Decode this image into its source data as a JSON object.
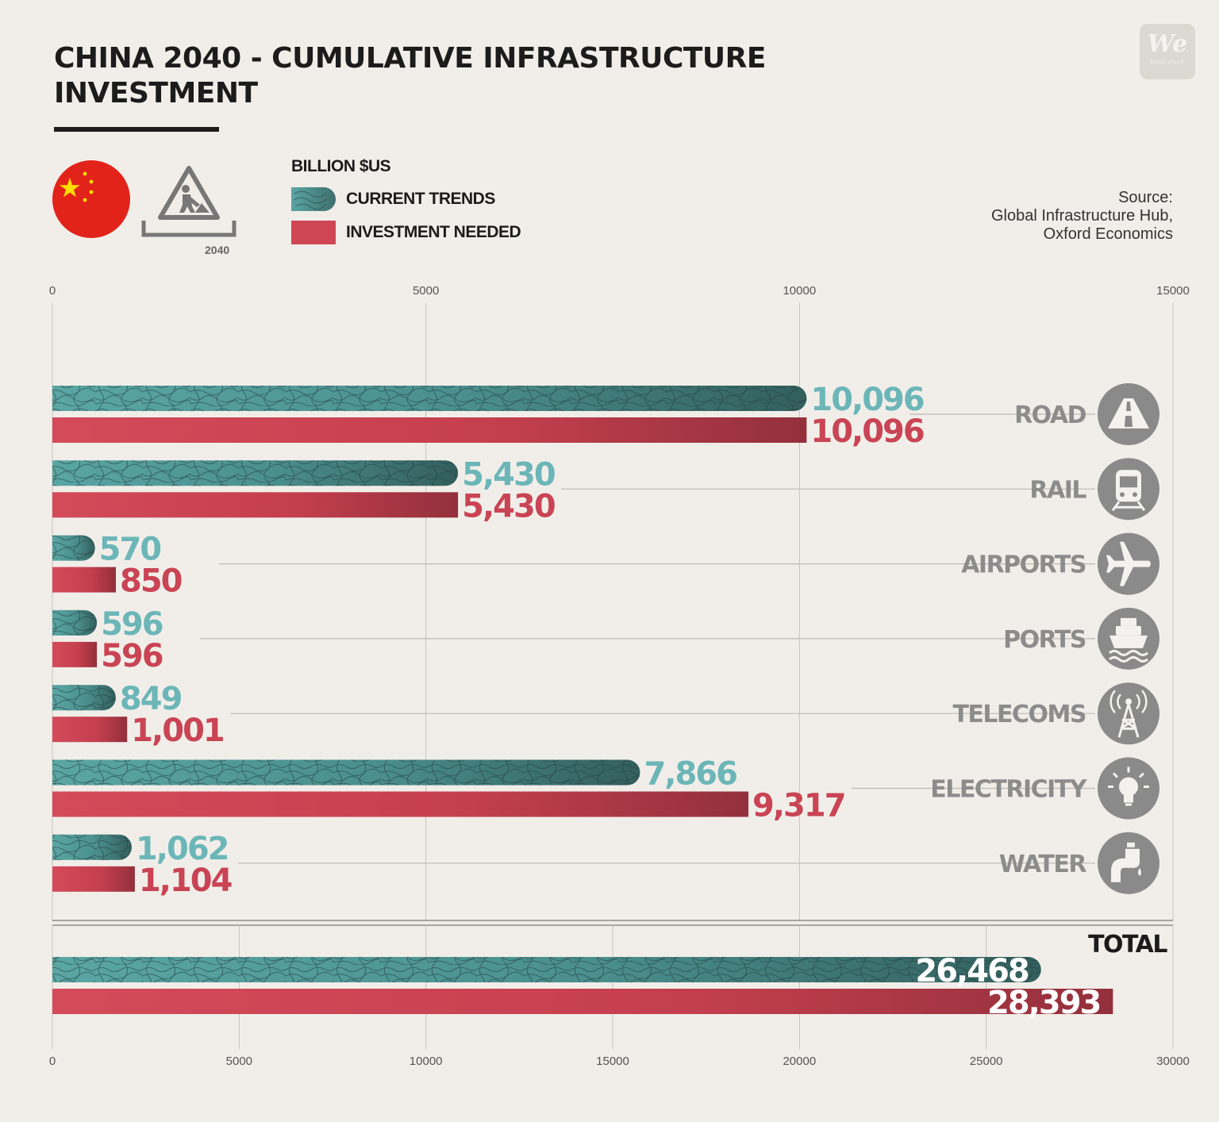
{
  "title": "CHINA 2040 - CUMULATIVE INFRASTRUCTURE INVESTMENT",
  "logo": {
    "text": "We",
    "tagline": "BUILD VALUE"
  },
  "icon_year": "2040",
  "unit": "BILLION $US",
  "legend": [
    {
      "name": "CURRENT TRENDS",
      "color": "#4f9a98",
      "icon": "textured-capsule"
    },
    {
      "name": "INVESTMENT NEEDED",
      "color": "#cf4655",
      "icon": "flat-rectangle"
    }
  ],
  "source": [
    "Source:",
    "Global Infrastructure Hub,",
    "Oxford Economics"
  ],
  "colors": {
    "current_trends": "#4f9a98",
    "current_trends_dark": "#2f5553",
    "investment_needed": "#cf4655",
    "investment_needed_dark": "#9a2e3a",
    "current_label": "#6cb6b8",
    "needed_label": "#c94454",
    "category_label": "#8c8c8c",
    "icon_circle": "#8a8a8a"
  },
  "chart_data": [
    {
      "type": "bar",
      "orientation": "horizontal",
      "categories": [
        "ROAD",
        "RAIL",
        "AIRPORTS",
        "PORTS",
        "TELECOMS",
        "ELECTRICITY",
        "WATER"
      ],
      "category_icons": [
        "road-icon",
        "train-icon",
        "airplane-icon",
        "ship-icon",
        "antenna-tower-icon",
        "light-bulb-icon",
        "water-tap-icon"
      ],
      "series": [
        {
          "name": "CURRENT TRENDS",
          "values": [
            10096,
            5430,
            570,
            596,
            849,
            7866,
            1062
          ],
          "labels": [
            "10,096",
            "5,430",
            "570",
            "596",
            "849",
            "7,866",
            "1,062"
          ]
        },
        {
          "name": "INVESTMENT NEEDED",
          "values": [
            10096,
            5430,
            850,
            596,
            1001,
            9317,
            1104
          ],
          "labels": [
            "10,096",
            "5,430",
            "850",
            "596",
            "1,001",
            "9,317",
            "1,104"
          ]
        }
      ],
      "xlim": [
        0,
        15000
      ],
      "ticks": [
        0,
        5000,
        10000,
        15000
      ],
      "grid": true
    },
    {
      "type": "bar",
      "orientation": "horizontal",
      "title": "TOTAL",
      "categories": [
        "TOTAL"
      ],
      "series": [
        {
          "name": "CURRENT TRENDS",
          "values": [
            26468
          ],
          "labels": [
            "26,468"
          ]
        },
        {
          "name": "INVESTMENT NEEDED",
          "values": [
            28393
          ],
          "labels": [
            "28,393"
          ]
        }
      ],
      "xlim": [
        0,
        30000
      ],
      "ticks": [
        0,
        5000,
        10000,
        15000,
        20000,
        25000,
        30000
      ],
      "grid": true
    }
  ]
}
